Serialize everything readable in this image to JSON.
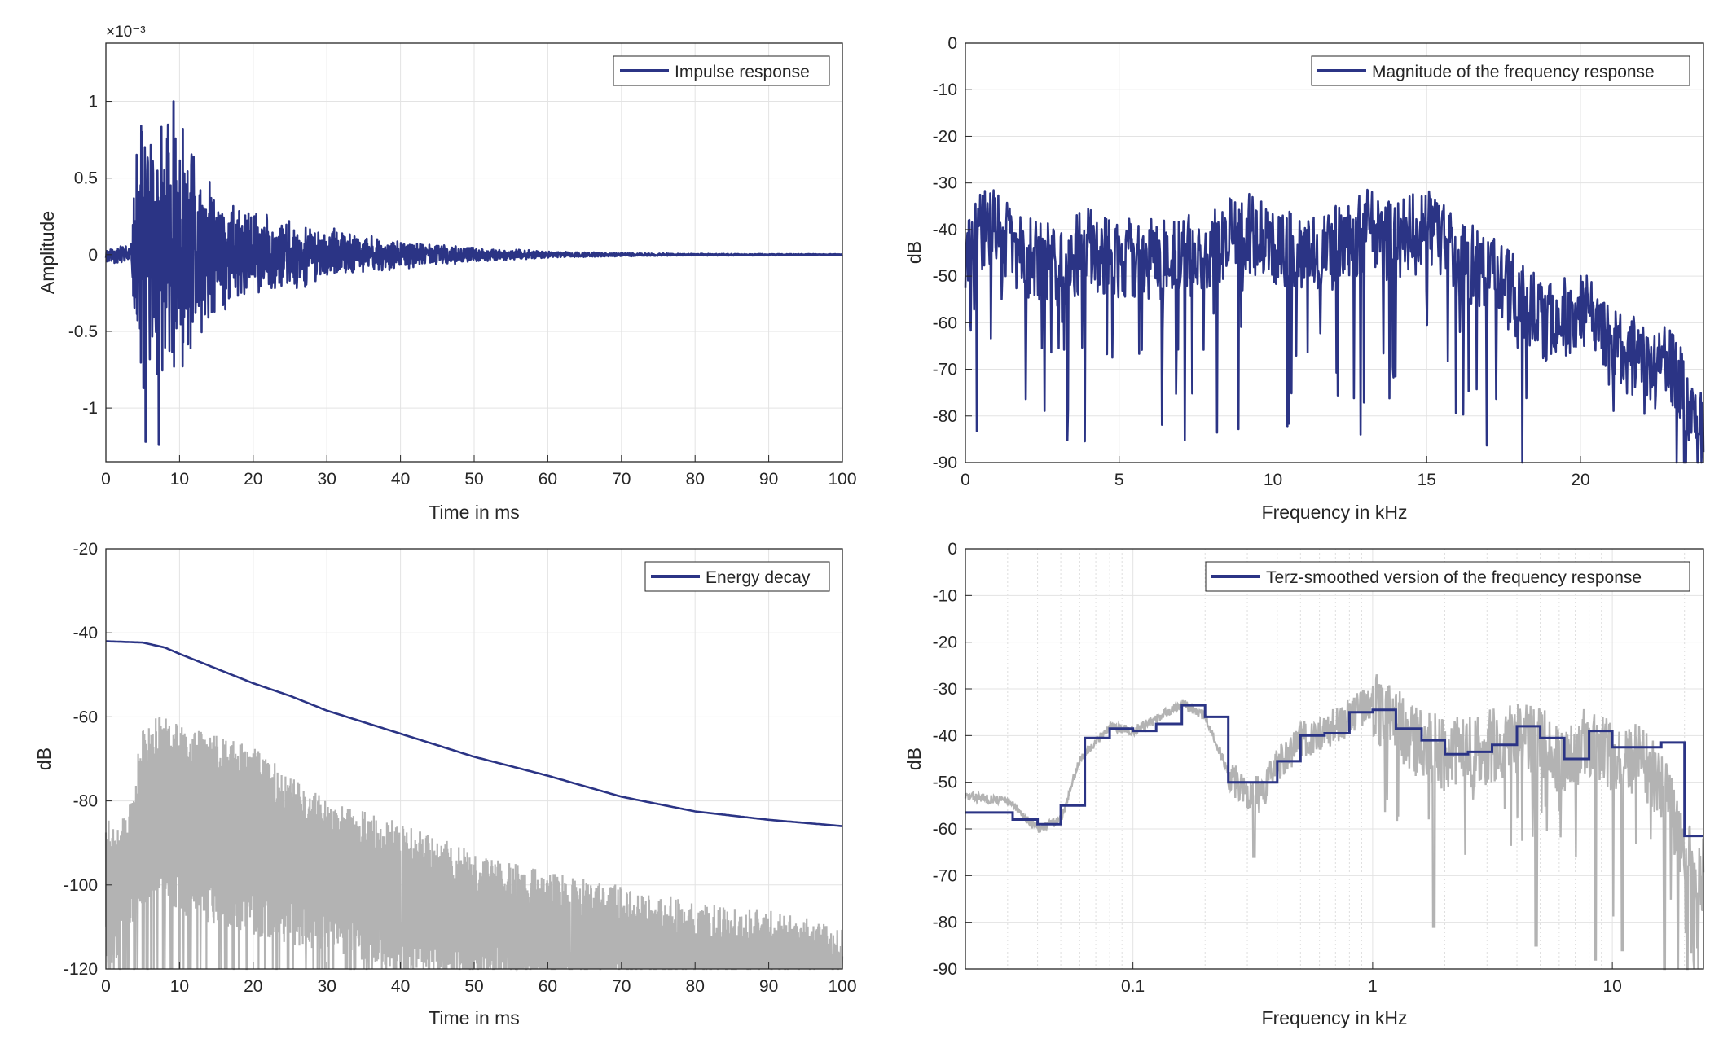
{
  "chart_data": [
    {
      "id": "impulse",
      "type": "line",
      "xlabel": "Time in ms",
      "ylabel": "Amplitude",
      "xlim": [
        0,
        100
      ],
      "ylim": [
        -1.35,
        1.38
      ],
      "y_exponent_label": "×10⁻³",
      "xticks": [
        "0",
        "10",
        "20",
        "30",
        "40",
        "50",
        "60",
        "70",
        "80",
        "90",
        "100"
      ],
      "xtick_values": [
        0,
        10,
        20,
        30,
        40,
        50,
        60,
        70,
        80,
        90,
        100
      ],
      "yticks": [
        "-1",
        "-0.5",
        "0",
        "0.5",
        "1"
      ],
      "ytick_values": [
        -1,
        -0.5,
        0,
        0.5,
        1
      ],
      "grid": true,
      "legend_position": "top-right",
      "series": [
        {
          "name": "Impulse response",
          "color": "#2b3485",
          "envelope": [
            [
              0,
              0.06
            ],
            [
              3.5,
              0.08
            ],
            [
              4,
              0.75
            ],
            [
              5,
              0.9
            ],
            [
              7,
              0.95
            ],
            [
              9,
              1.0
            ],
            [
              12,
              0.7
            ],
            [
              15,
              0.45
            ],
            [
              20,
              0.3
            ],
            [
              30,
              0.18
            ],
            [
              40,
              0.1
            ],
            [
              50,
              0.05
            ],
            [
              60,
              0.025
            ],
            [
              70,
              0.012
            ],
            [
              80,
              0.007
            ],
            [
              100,
              0.005
            ]
          ],
          "peaks": [
            [
              4.9,
              0.8
            ],
            [
              5.1,
              -0.87
            ],
            [
              5.4,
              -1.22
            ],
            [
              7.2,
              -1.24
            ],
            [
              9.2,
              1.0
            ]
          ]
        }
      ]
    },
    {
      "id": "magnitude",
      "type": "line",
      "xlabel": "Frequency in kHz",
      "ylabel": "dB",
      "xlim": [
        0,
        24
      ],
      "ylim": [
        -90,
        0
      ],
      "xticks": [
        "0",
        "5",
        "10",
        "15",
        "20"
      ],
      "xtick_values": [
        0,
        5,
        10,
        15,
        20
      ],
      "yticks": [
        "0",
        "-10",
        "-20",
        "-30",
        "-40",
        "-50",
        "-60",
        "-70",
        "-80",
        "-90"
      ],
      "ytick_values": [
        0,
        -10,
        -20,
        -30,
        -40,
        -50,
        -60,
        -70,
        -80,
        -90
      ],
      "grid": true,
      "legend_position": "top-right",
      "series": [
        {
          "name": "Magnitude of the frequency response",
          "color": "#2b3485",
          "trend": [
            [
              0,
              -48
            ],
            [
              0.5,
              -40
            ],
            [
              1,
              -40
            ],
            [
              2,
              -46
            ],
            [
              3,
              -48
            ],
            [
              4,
              -44
            ],
            [
              5,
              -47
            ],
            [
              6,
              -46
            ],
            [
              7,
              -46
            ],
            [
              8,
              -45
            ],
            [
              9,
              -40
            ],
            [
              10,
              -43
            ],
            [
              11,
              -44
            ],
            [
              12,
              -44
            ],
            [
              13,
              -40
            ],
            [
              14,
              -43
            ],
            [
              15,
              -40
            ],
            [
              16,
              -46
            ],
            [
              17,
              -50
            ],
            [
              18,
              -55
            ],
            [
              19,
              -60
            ],
            [
              20,
              -57
            ],
            [
              21,
              -65
            ],
            [
              22,
              -68
            ],
            [
              23,
              -70
            ],
            [
              24,
              -85
            ]
          ]
        }
      ]
    },
    {
      "id": "energy",
      "type": "line",
      "xlabel": "Time in ms",
      "ylabel": "dB",
      "xlim": [
        0,
        100
      ],
      "ylim": [
        -120,
        -20
      ],
      "xticks": [
        "0",
        "10",
        "20",
        "30",
        "40",
        "50",
        "60",
        "70",
        "80",
        "90",
        "100"
      ],
      "xtick_values": [
        0,
        10,
        20,
        30,
        40,
        50,
        60,
        70,
        80,
        90,
        100
      ],
      "yticks": [
        "-20",
        "-40",
        "-60",
        "-80",
        "-100",
        "-120"
      ],
      "ytick_values": [
        -20,
        -40,
        -60,
        -80,
        -100,
        -120
      ],
      "grid": true,
      "legend_position": "top-right",
      "series": [
        {
          "name": "Energy decay",
          "color": "#2b3485",
          "points": [
            [
              0,
              -42
            ],
            [
              5,
              -42.3
            ],
            [
              8,
              -43.5
            ],
            [
              10,
              -45
            ],
            [
              15,
              -48.5
            ],
            [
              20,
              -52
            ],
            [
              25,
              -55
            ],
            [
              30,
              -58.5
            ],
            [
              40,
              -64
            ],
            [
              50,
              -69.5
            ],
            [
              60,
              -74
            ],
            [
              70,
              -79
            ],
            [
              80,
              -82.5
            ],
            [
              90,
              -84.5
            ],
            [
              100,
              -86
            ]
          ]
        },
        {
          "color": "#b3b3b3",
          "upper": [
            [
              0,
              -85
            ],
            [
              3,
              -82
            ],
            [
              4,
              -72
            ],
            [
              5,
              -62
            ],
            [
              8,
              -58
            ],
            [
              10,
              -62
            ],
            [
              20,
              -67
            ],
            [
              30,
              -80
            ],
            [
              40,
              -85
            ],
            [
              50,
              -92
            ],
            [
              60,
              -97
            ],
            [
              70,
              -100
            ],
            [
              80,
              -104
            ],
            [
              90,
              -106
            ],
            [
              100,
              -110
            ]
          ],
          "base": [
            [
              0,
              -110
            ],
            [
              3,
              -102
            ],
            [
              5,
              -92
            ],
            [
              10,
              -95
            ],
            [
              20,
              -100
            ],
            [
              30,
              -104
            ],
            [
              40,
              -108
            ],
            [
              50,
              -111
            ],
            [
              60,
              -114
            ],
            [
              70,
              -116
            ],
            [
              80,
              -117
            ],
            [
              90,
              -118
            ],
            [
              100,
              -118
            ]
          ]
        }
      ]
    },
    {
      "id": "terz",
      "type": "line",
      "xlabel": "Frequency in kHz",
      "ylabel": "dB",
      "xscale": "log",
      "xlim": [
        0.02,
        24
      ],
      "ylim": [
        -90,
        0
      ],
      "xticks": [
        "0.1",
        "1",
        "10"
      ],
      "xtick_values": [
        0.1,
        1,
        10
      ],
      "yticks": [
        "0",
        "-10",
        "-20",
        "-30",
        "-40",
        "-50",
        "-60",
        "-70",
        "-80",
        "-90"
      ],
      "ytick_values": [
        0,
        -10,
        -20,
        -30,
        -40,
        -50,
        -60,
        -70,
        -80,
        -90
      ],
      "grid": true,
      "legend_position": "top-right",
      "series": [
        {
          "name": "Terz-smoothed version of the frequency response",
          "color": "#2b3485",
          "steps": [
            [
              0.02,
              -56.5
            ],
            [
              0.0315,
              -58
            ],
            [
              0.04,
              -59
            ],
            [
              0.05,
              -55
            ],
            [
              0.063,
              -40.5
            ],
            [
              0.08,
              -38.5
            ],
            [
              0.1,
              -39
            ],
            [
              0.125,
              -37.5
            ],
            [
              0.16,
              -33.5
            ],
            [
              0.2,
              -36
            ],
            [
              0.25,
              -50
            ],
            [
              0.315,
              -50
            ],
            [
              0.4,
              -45.5
            ],
            [
              0.5,
              -40
            ],
            [
              0.63,
              -39.5
            ],
            [
              0.8,
              -35
            ],
            [
              1.0,
              -34.5
            ],
            [
              1.25,
              -38.5
            ],
            [
              1.6,
              -41
            ],
            [
              2.0,
              -44
            ],
            [
              2.5,
              -43.5
            ],
            [
              3.15,
              -42
            ],
            [
              4.0,
              -38
            ],
            [
              5.0,
              -40.5
            ],
            [
              6.3,
              -45
            ],
            [
              8.0,
              -39
            ],
            [
              10.0,
              -42.5
            ],
            [
              12.5,
              -42.5
            ],
            [
              16.0,
              -41.5
            ],
            [
              20.0,
              -61.5
            ],
            [
              24.0,
              -61.5
            ]
          ]
        },
        {
          "color": "#b3b3b3",
          "trend": [
            [
              0.02,
              -53
            ],
            [
              0.03,
              -54
            ],
            [
              0.04,
              -60
            ],
            [
              0.05,
              -58
            ],
            [
              0.06,
              -45
            ],
            [
              0.08,
              -38
            ],
            [
              0.1,
              -39
            ],
            [
              0.13,
              -36
            ],
            [
              0.16,
              -33
            ],
            [
              0.2,
              -36
            ],
            [
              0.25,
              -48
            ],
            [
              0.3,
              -52
            ],
            [
              0.35,
              -53
            ],
            [
              0.4,
              -46
            ],
            [
              0.5,
              -41
            ],
            [
              0.6,
              -40
            ],
            [
              0.7,
              -38
            ],
            [
              0.9,
              -34
            ],
            [
              1.0,
              -34
            ],
            [
              1.3,
              -38
            ],
            [
              1.6,
              -42
            ],
            [
              2.0,
              -44
            ],
            [
              2.5,
              -44
            ],
            [
              3.2,
              -42
            ],
            [
              4.0,
              -40
            ],
            [
              5.0,
              -42
            ],
            [
              6.3,
              -45
            ],
            [
              8.0,
              -41
            ],
            [
              10,
              -44
            ],
            [
              13,
              -45
            ],
            [
              16,
              -50
            ],
            [
              20,
              -65
            ],
            [
              24,
              -70
            ]
          ],
          "dips": [
            [
              0.32,
              -66
            ],
            [
              1.8,
              -81
            ],
            [
              4.8,
              -85
            ],
            [
              8.5,
              -88
            ],
            [
              11,
              -86
            ],
            [
              16.5,
              -90
            ],
            [
              20.5,
              -90
            ]
          ]
        }
      ]
    }
  ]
}
